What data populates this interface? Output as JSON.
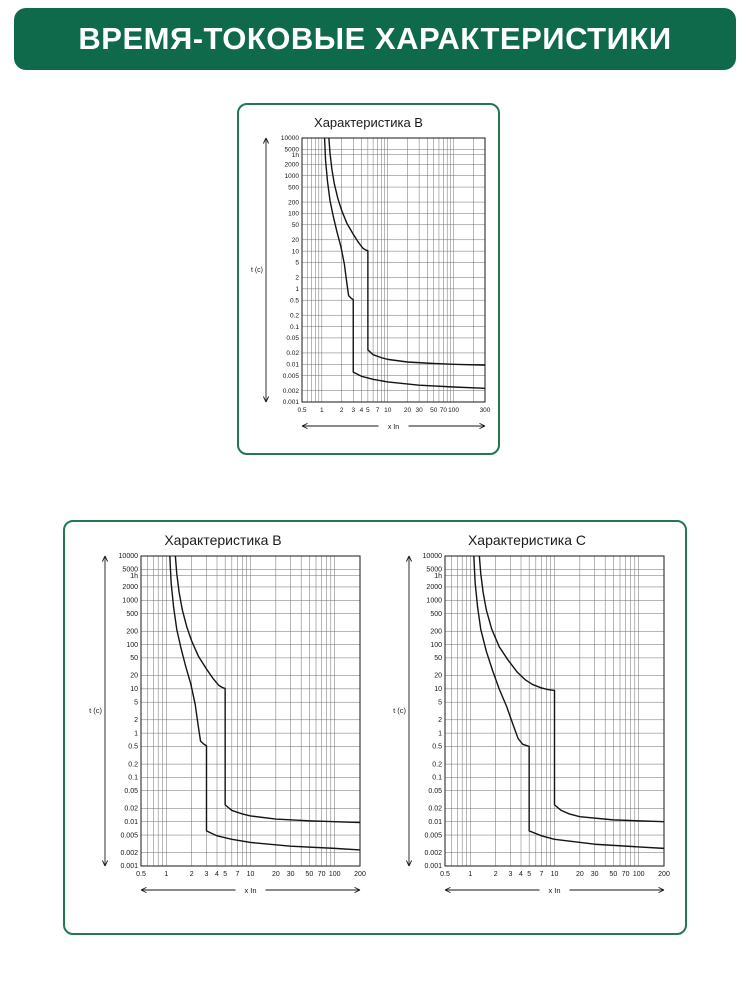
{
  "header": {
    "title": "ВРЕМЯ-ТОКОВЫЕ ХАРАКТЕРИСТИКИ"
  },
  "colors": {
    "header_bg": "#0e6a4b",
    "card_border": "#207952",
    "curve": "#141414",
    "grid": "#6f6f6f",
    "axis": "#1a1a1a",
    "text": "#161616"
  },
  "chart_data": [
    {
      "type": "line",
      "title": "Характеристика В",
      "xlabel": "x In",
      "ylabel": "t (c)",
      "xlim": [
        0.5,
        300
      ],
      "ylim": [
        0.001,
        10000
      ],
      "log": true,
      "grid": true,
      "x_ticks": [
        {
          "v": 0.5,
          "label": "0.5"
        },
        {
          "v": 1,
          "label": "1"
        },
        {
          "v": 2,
          "label": "2"
        },
        {
          "v": 3,
          "label": "3"
        },
        {
          "v": 4,
          "label": "4"
        },
        {
          "v": 5,
          "label": "5"
        },
        {
          "v": 7,
          "label": "7"
        },
        {
          "v": 10,
          "label": "10"
        },
        {
          "v": 20,
          "label": "20"
        },
        {
          "v": 30,
          "label": "30"
        },
        {
          "v": 50,
          "label": "50"
        },
        {
          "v": 70,
          "label": "70"
        },
        {
          "v": 100,
          "label": "100"
        },
        {
          "v": 300,
          "label": "300"
        }
      ],
      "y_ticks": [
        {
          "v": 10000,
          "label": "10000"
        },
        {
          "v": 5000,
          "label": "5000"
        },
        {
          "v": 3600,
          "label": "1h"
        },
        {
          "v": 2000,
          "label": "2000"
        },
        {
          "v": 1000,
          "label": "1000"
        },
        {
          "v": 500,
          "label": "500"
        },
        {
          "v": 200,
          "label": "200"
        },
        {
          "v": 100,
          "label": "100"
        },
        {
          "v": 50,
          "label": "50"
        },
        {
          "v": 20,
          "label": "20"
        },
        {
          "v": 10,
          "label": "10"
        },
        {
          "v": 5,
          "label": "5"
        },
        {
          "v": 2,
          "label": "2"
        },
        {
          "v": 1,
          "label": "1"
        },
        {
          "v": 0.5,
          "label": "0.5"
        },
        {
          "v": 0.2,
          "label": "0.2"
        },
        {
          "v": 0.1,
          "label": "0.1"
        },
        {
          "v": 0.05,
          "label": "0.05"
        },
        {
          "v": 0.02,
          "label": "0.02"
        },
        {
          "v": 0.01,
          "label": "0.01"
        },
        {
          "v": 0.005,
          "label": "0.005"
        },
        {
          "v": 0.002,
          "label": "0.002"
        },
        {
          "v": 0.001,
          "label": "0.001"
        }
      ],
      "x_grid": [
        0.5,
        0.6,
        0.7,
        0.8,
        0.9,
        1,
        2,
        3,
        4,
        5,
        6,
        7,
        8,
        9,
        10,
        20,
        30,
        40,
        50,
        60,
        70,
        80,
        90,
        100,
        200,
        300
      ],
      "y_grid": [
        10000,
        5000,
        3600,
        2000,
        1000,
        500,
        200,
        100,
        50,
        20,
        10,
        5,
        2,
        1,
        0.5,
        0.2,
        0.1,
        0.05,
        0.02,
        0.01,
        0.005,
        0.002,
        0.001
      ],
      "series": [
        {
          "name": "upper-trip-limit",
          "points": [
            [
              1.28,
              10000
            ],
            [
              1.33,
              4000
            ],
            [
              1.42,
              1500
            ],
            [
              1.55,
              600
            ],
            [
              1.75,
              250
            ],
            [
              2.0,
              120
            ],
            [
              2.4,
              55
            ],
            [
              3.0,
              28
            ],
            [
              3.6,
              17
            ],
            [
              4.2,
              12
            ],
            [
              4.6,
              10.8
            ],
            [
              5.0,
              10.2
            ],
            [
              5.0,
              0.024
            ],
            [
              6,
              0.018
            ],
            [
              8,
              0.015
            ],
            [
              10,
              0.0135
            ],
            [
              20,
              0.0115
            ],
            [
              50,
              0.0105
            ],
            [
              100,
              0.01
            ],
            [
              300,
              0.0095
            ]
          ]
        },
        {
          "name": "lower-trip-limit",
          "points": [
            [
              1.1,
              10000
            ],
            [
              1.14,
              2500
            ],
            [
              1.22,
              700
            ],
            [
              1.33,
              220
            ],
            [
              1.5,
              80
            ],
            [
              1.7,
              32
            ],
            [
              1.95,
              13
            ],
            [
              2.2,
              4.5
            ],
            [
              2.4,
              1.4
            ],
            [
              2.55,
              0.66
            ],
            [
              2.8,
              0.56
            ],
            [
              3.0,
              0.52
            ],
            [
              3.0,
              0.0062
            ],
            [
              4,
              0.0048
            ],
            [
              6,
              0.004
            ],
            [
              10,
              0.0034
            ],
            [
              30,
              0.0028
            ],
            [
              100,
              0.0025
            ],
            [
              300,
              0.0023
            ]
          ]
        }
      ]
    },
    {
      "type": "line",
      "title": "Характеристика В",
      "xlabel": "x In",
      "ylabel": "t (c)",
      "xlim": [
        0.5,
        200
      ],
      "ylim": [
        0.001,
        10000
      ],
      "log": true,
      "grid": true,
      "x_ticks": [
        {
          "v": 0.5,
          "label": "0.5"
        },
        {
          "v": 1,
          "label": "1"
        },
        {
          "v": 2,
          "label": "2"
        },
        {
          "v": 3,
          "label": "3"
        },
        {
          "v": 4,
          "label": "4"
        },
        {
          "v": 5,
          "label": "5"
        },
        {
          "v": 7,
          "label": "7"
        },
        {
          "v": 10,
          "label": "10"
        },
        {
          "v": 20,
          "label": "20"
        },
        {
          "v": 30,
          "label": "30"
        },
        {
          "v": 50,
          "label": "50"
        },
        {
          "v": 70,
          "label": "70"
        },
        {
          "v": 100,
          "label": "100"
        },
        {
          "v": 200,
          "label": "200"
        }
      ],
      "y_ticks": [
        {
          "v": 10000,
          "label": "10000"
        },
        {
          "v": 5000,
          "label": "5000"
        },
        {
          "v": 3600,
          "label": "1h"
        },
        {
          "v": 2000,
          "label": "2000"
        },
        {
          "v": 1000,
          "label": "1000"
        },
        {
          "v": 500,
          "label": "500"
        },
        {
          "v": 200,
          "label": "200"
        },
        {
          "v": 100,
          "label": "100"
        },
        {
          "v": 50,
          "label": "50"
        },
        {
          "v": 20,
          "label": "20"
        },
        {
          "v": 10,
          "label": "10"
        },
        {
          "v": 5,
          "label": "5"
        },
        {
          "v": 2,
          "label": "2"
        },
        {
          "v": 1,
          "label": "1"
        },
        {
          "v": 0.5,
          "label": "0.5"
        },
        {
          "v": 0.2,
          "label": "0.2"
        },
        {
          "v": 0.1,
          "label": "0.1"
        },
        {
          "v": 0.05,
          "label": "0.05"
        },
        {
          "v": 0.02,
          "label": "0.02"
        },
        {
          "v": 0.01,
          "label": "0.01"
        },
        {
          "v": 0.005,
          "label": "0.005"
        },
        {
          "v": 0.002,
          "label": "0.002"
        },
        {
          "v": 0.001,
          "label": "0.001"
        }
      ],
      "x_grid": [
        0.5,
        0.6,
        0.7,
        0.8,
        0.9,
        1,
        2,
        3,
        4,
        5,
        6,
        7,
        8,
        9,
        10,
        20,
        30,
        40,
        50,
        60,
        70,
        80,
        90,
        100,
        200
      ],
      "y_grid": [
        10000,
        5000,
        3600,
        2000,
        1000,
        500,
        200,
        100,
        50,
        20,
        10,
        5,
        2,
        1,
        0.5,
        0.2,
        0.1,
        0.05,
        0.02,
        0.01,
        0.005,
        0.002,
        0.001
      ],
      "series": [
        {
          "name": "upper-trip-limit",
          "points": [
            [
              1.28,
              10000
            ],
            [
              1.33,
              4000
            ],
            [
              1.42,
              1500
            ],
            [
              1.55,
              600
            ],
            [
              1.75,
              250
            ],
            [
              2.0,
              120
            ],
            [
              2.4,
              55
            ],
            [
              3.0,
              28
            ],
            [
              3.6,
              17
            ],
            [
              4.2,
              12
            ],
            [
              4.6,
              10.8
            ],
            [
              5.0,
              10.2
            ],
            [
              5.0,
              0.024
            ],
            [
              6,
              0.018
            ],
            [
              8,
              0.015
            ],
            [
              10,
              0.0135
            ],
            [
              20,
              0.0115
            ],
            [
              50,
              0.0105
            ],
            [
              100,
              0.01
            ],
            [
              200,
              0.0096
            ]
          ]
        },
        {
          "name": "lower-trip-limit",
          "points": [
            [
              1.1,
              10000
            ],
            [
              1.14,
              2500
            ],
            [
              1.22,
              700
            ],
            [
              1.33,
              220
            ],
            [
              1.5,
              80
            ],
            [
              1.7,
              32
            ],
            [
              1.95,
              13
            ],
            [
              2.2,
              4.5
            ],
            [
              2.4,
              1.4
            ],
            [
              2.55,
              0.66
            ],
            [
              2.8,
              0.56
            ],
            [
              3.0,
              0.52
            ],
            [
              3.0,
              0.0062
            ],
            [
              4,
              0.0048
            ],
            [
              6,
              0.004
            ],
            [
              10,
              0.0034
            ],
            [
              30,
              0.0028
            ],
            [
              100,
              0.0025
            ],
            [
              200,
              0.0023
            ]
          ]
        }
      ]
    },
    {
      "type": "line",
      "title": "Характеристика С",
      "xlabel": "x In",
      "ylabel": "t (c)",
      "xlim": [
        0.5,
        200
      ],
      "ylim": [
        0.001,
        10000
      ],
      "log": true,
      "grid": true,
      "x_ticks": [
        {
          "v": 0.5,
          "label": "0.5"
        },
        {
          "v": 1,
          "label": "1"
        },
        {
          "v": 2,
          "label": "2"
        },
        {
          "v": 3,
          "label": "3"
        },
        {
          "v": 4,
          "label": "4"
        },
        {
          "v": 5,
          "label": "5"
        },
        {
          "v": 7,
          "label": "7"
        },
        {
          "v": 10,
          "label": "10"
        },
        {
          "v": 20,
          "label": "20"
        },
        {
          "v": 30,
          "label": "30"
        },
        {
          "v": 50,
          "label": "50"
        },
        {
          "v": 70,
          "label": "70"
        },
        {
          "v": 100,
          "label": "100"
        },
        {
          "v": 200,
          "label": "200"
        }
      ],
      "y_ticks": [
        {
          "v": 10000,
          "label": "10000"
        },
        {
          "v": 5000,
          "label": "5000"
        },
        {
          "v": 3600,
          "label": "1h"
        },
        {
          "v": 2000,
          "label": "2000"
        },
        {
          "v": 1000,
          "label": "1000"
        },
        {
          "v": 500,
          "label": "500"
        },
        {
          "v": 200,
          "label": "200"
        },
        {
          "v": 100,
          "label": "100"
        },
        {
          "v": 50,
          "label": "50"
        },
        {
          "v": 20,
          "label": "20"
        },
        {
          "v": 10,
          "label": "10"
        },
        {
          "v": 5,
          "label": "5"
        },
        {
          "v": 2,
          "label": "2"
        },
        {
          "v": 1,
          "label": "1"
        },
        {
          "v": 0.5,
          "label": "0.5"
        },
        {
          "v": 0.2,
          "label": "0.2"
        },
        {
          "v": 0.1,
          "label": "0.1"
        },
        {
          "v": 0.05,
          "label": "0.05"
        },
        {
          "v": 0.02,
          "label": "0.02"
        },
        {
          "v": 0.01,
          "label": "0.01"
        },
        {
          "v": 0.005,
          "label": "0.005"
        },
        {
          "v": 0.002,
          "label": "0.002"
        },
        {
          "v": 0.001,
          "label": "0.001"
        }
      ],
      "x_grid": [
        0.5,
        0.6,
        0.7,
        0.8,
        0.9,
        1,
        2,
        3,
        4,
        5,
        6,
        7,
        8,
        9,
        10,
        20,
        30,
        40,
        50,
        60,
        70,
        80,
        90,
        100,
        200
      ],
      "y_grid": [
        10000,
        5000,
        3600,
        2000,
        1000,
        500,
        200,
        100,
        50,
        20,
        10,
        5,
        2,
        1,
        0.5,
        0.2,
        0.1,
        0.05,
        0.02,
        0.01,
        0.005,
        0.002,
        0.001
      ],
      "series": [
        {
          "name": "upper-trip-limit",
          "points": [
            [
              1.28,
              10000
            ],
            [
              1.33,
              4000
            ],
            [
              1.42,
              1500
            ],
            [
              1.55,
              600
            ],
            [
              1.8,
              220
            ],
            [
              2.2,
              90
            ],
            [
              2.8,
              45
            ],
            [
              3.6,
              24
            ],
            [
              4.5,
              16
            ],
            [
              5.5,
              12.5
            ],
            [
              7,
              10.5
            ],
            [
              8.5,
              9.6
            ],
            [
              10,
              9.2
            ],
            [
              10,
              0.024
            ],
            [
              12,
              0.018
            ],
            [
              15,
              0.015
            ],
            [
              20,
              0.013
            ],
            [
              50,
              0.011
            ],
            [
              100,
              0.0105
            ],
            [
              200,
              0.01
            ]
          ]
        },
        {
          "name": "lower-trip-limit",
          "points": [
            [
              1.1,
              10000
            ],
            [
              1.14,
              2500
            ],
            [
              1.22,
              700
            ],
            [
              1.33,
              220
            ],
            [
              1.55,
              70
            ],
            [
              1.85,
              25
            ],
            [
              2.2,
              10
            ],
            [
              2.7,
              4
            ],
            [
              3.2,
              1.6
            ],
            [
              3.7,
              0.75
            ],
            [
              4.2,
              0.56
            ],
            [
              5.0,
              0.5
            ],
            [
              5.0,
              0.0062
            ],
            [
              7,
              0.0048
            ],
            [
              10,
              0.004
            ],
            [
              30,
              0.0031
            ],
            [
              100,
              0.0027
            ],
            [
              200,
              0.0025
            ]
          ]
        }
      ]
    }
  ]
}
